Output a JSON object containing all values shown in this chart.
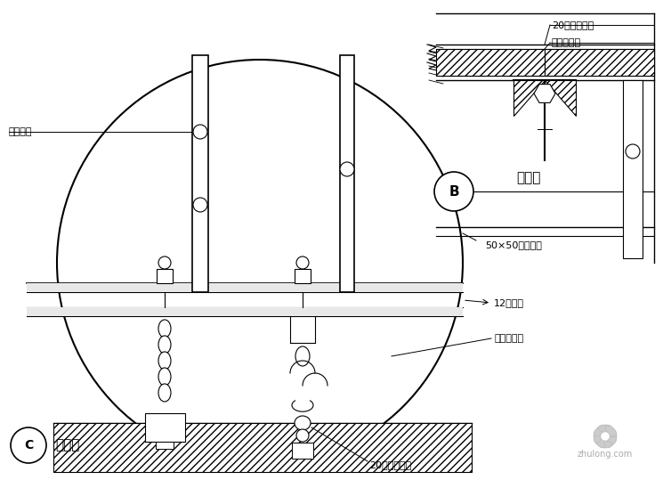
{
  "bg_color": "#ffffff",
  "line_color": "#000000",
  "fig_w": 7.45,
  "fig_h": 5.39,
  "dpi": 100,
  "labels": {
    "peng_zhang": "膨胀螺栓",
    "label_50x50": "50×50镀锌角钢",
    "label_12hao": "12号槽钢",
    "label_boli": "玻璃吊挂件",
    "label_20_bot": "20厘钢化玻璃",
    "label_20_top": "20厘钢化玻璃",
    "label_transparent": "透明结构胶",
    "label_B": "B",
    "label_miantu": "剖面图",
    "label_C": "C",
    "label_dayangtu": "大样图"
  }
}
